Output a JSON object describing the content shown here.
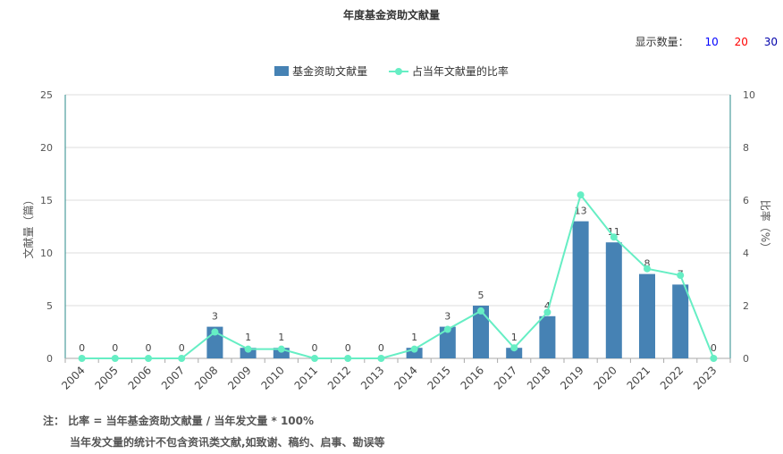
{
  "title": "年度基金资助文献量",
  "display": {
    "label": "显示数量：",
    "options": [
      {
        "label": "10",
        "color": "#0000ff"
      },
      {
        "label": "20",
        "color": "#ff0000"
      },
      {
        "label": "30",
        "color": "#0000aa"
      }
    ]
  },
  "legend": {
    "bar": "基金资助文献量",
    "line": "占当年文献量的比率"
  },
  "notes": {
    "line1": "注： 比率 = 当年基金资助文献量 / 当年发文量 * 100%",
    "line2": "当年发文量的统计不包含资讯类文献,如致谢、稿约、启事、勘误等"
  },
  "colors": {
    "bar": "#4682b4",
    "line": "#66eec4",
    "axis": "#2a8b8b"
  },
  "chart_data": {
    "type": "bar",
    "title": "年度基金资助文献量",
    "ylabel": "文献量（篇）",
    "y2label": "比率（%）",
    "ylim": [
      0,
      25
    ],
    "y2lim": [
      0,
      10
    ],
    "yticks": [
      "0",
      "5",
      "10",
      "15",
      "20",
      "25"
    ],
    "y2ticks": [
      "0",
      "2",
      "4",
      "6",
      "8",
      "10"
    ],
    "categories": [
      "2004",
      "2005",
      "2006",
      "2007",
      "2008",
      "2009",
      "2010",
      "2011",
      "2012",
      "2013",
      "2014",
      "2015",
      "2016",
      "2017",
      "2018",
      "2019",
      "2020",
      "2021",
      "2022",
      "2023"
    ],
    "series": [
      {
        "name": "基金资助文献量",
        "type": "bar",
        "values": [
          0,
          0,
          0,
          0,
          3,
          1,
          1,
          0,
          0,
          0,
          1,
          3,
          5,
          1,
          4,
          13,
          11,
          8,
          7,
          0
        ]
      },
      {
        "name": "占当年文献量的比率",
        "type": "line",
        "axis": "right",
        "values": [
          0,
          0,
          0,
          0,
          1.0,
          0.35,
          0.35,
          0,
          0,
          0,
          0.35,
          1.1,
          1.8,
          0.4,
          1.75,
          6.2,
          4.6,
          3.4,
          3.15,
          0
        ]
      }
    ],
    "grid": true,
    "legend_position": "top-center"
  }
}
